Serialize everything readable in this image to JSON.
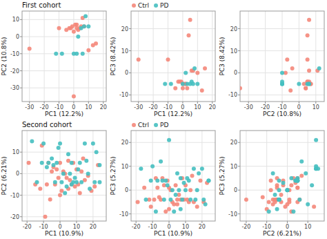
{
  "chart_data": [
    {
      "type": "scatter",
      "title": "First cohort",
      "xlabel": "PC1 (12.2%)",
      "ylabel": "PC2 (10.8%)",
      "xlim": [
        -35,
        22
      ],
      "ylim": [
        -38,
        15
      ],
      "xticks": [
        -30,
        -20,
        -10,
        0,
        10,
        20
      ],
      "yticks": [
        -30,
        -20,
        -10,
        0,
        10
      ],
      "grid": true,
      "series": [
        {
          "color": "#F4877A",
          "x": [
            -30,
            -10,
            -5,
            -3,
            -1,
            0,
            0,
            1,
            2,
            3,
            4,
            5,
            6,
            10,
            13,
            15,
            -2,
            2,
            7
          ],
          "values": [
            -7,
            5,
            4,
            5,
            6,
            3,
            -35,
            7,
            7,
            4,
            5,
            6,
            11,
            -8,
            -5,
            -4,
            5,
            5,
            6
          ]
        },
        {
          "color": "#45BFC0",
          "x": [
            -12,
            -8,
            0,
            2,
            5,
            7,
            8,
            10,
            3,
            6
          ],
          "values": [
            -10,
            -10,
            -10,
            -10,
            5,
            6,
            12,
            6,
            0,
            -10
          ]
        }
      ]
    },
    {
      "type": "scatter",
      "xlabel": "PC1 (12.2%)",
      "ylabel": "PC3 (8.42%)",
      "xlim": [
        -35,
        22
      ],
      "ylim": [
        -13,
        28
      ],
      "xticks": [
        -30,
        -20,
        -10,
        0,
        10,
        20
      ],
      "yticks": [
        -10,
        0,
        10,
        20
      ],
      "grid": true,
      "legend": "top left",
      "series": [
        {
          "name": "Ctrl",
          "color": "#F4877A",
          "x": [
            -30,
            -10,
            -5,
            -3,
            -1,
            0,
            0,
            1,
            2,
            3,
            4,
            5,
            6,
            10,
            13,
            15,
            -2,
            2,
            7
          ],
          "values": [
            6,
            6,
            -7,
            -4,
            -4,
            -5,
            -7,
            -5,
            -5,
            -7,
            17,
            24,
            1,
            0,
            -8,
            2,
            -4,
            -5,
            1
          ]
        },
        {
          "name": "PD",
          "color": "#45BFC0",
          "x": [
            -12,
            -8,
            0,
            2,
            5,
            7,
            8,
            10,
            3,
            6
          ],
          "values": [
            -5,
            -5,
            -5,
            0,
            -5,
            -5,
            2,
            -5,
            -5,
            -4
          ]
        }
      ]
    },
    {
      "type": "scatter",
      "xlabel": "PC2 (10.8%)",
      "ylabel": "PC3 (8.42%)",
      "xlim": [
        -35,
        15
      ],
      "ylim": [
        -13,
        28
      ],
      "xticks": [
        -30,
        -20,
        -10,
        0,
        10
      ],
      "yticks": [
        -10,
        0,
        10,
        20
      ],
      "grid": true,
      "series": [
        {
          "color": "#F4877A",
          "x": [
            -7,
            5,
            4,
            5,
            6,
            3,
            -35,
            7,
            7,
            4,
            5,
            6,
            11,
            -8,
            -5,
            -4,
            5,
            5,
            6
          ],
          "values": [
            6,
            6,
            -7,
            -4,
            -4,
            -5,
            -7,
            -5,
            -5,
            -7,
            17,
            24,
            1,
            0,
            -8,
            2,
            -4,
            -5,
            1
          ]
        },
        {
          "color": "#45BFC0",
          "x": [
            -10,
            -10,
            -10,
            -10,
            5,
            6,
            12,
            6,
            0,
            -10
          ],
          "values": [
            -5,
            -5,
            -5,
            0,
            -5,
            -5,
            2,
            -5,
            -5,
            -4
          ]
        }
      ]
    },
    {
      "type": "scatter",
      "title": "Second cohort",
      "xlabel": "PC1 (10.9%)",
      "ylabel": "PC2 (6.21%)",
      "xlim": [
        -23,
        28
      ],
      "ylim": [
        -22,
        20
      ],
      "xticks": [
        -20,
        -10,
        0,
        10,
        20
      ],
      "yticks": [
        -20,
        -10,
        0,
        10
      ],
      "grid": true,
      "series": [
        {
          "color": "#F4877A",
          "x": [
            -19,
            -15,
            -12,
            -11,
            -9,
            -8,
            -7,
            -5,
            -3,
            -2,
            -1,
            0,
            0,
            1,
            2,
            3,
            5,
            5,
            7,
            8,
            10,
            11,
            13,
            15,
            17,
            19,
            21,
            23,
            -4,
            6,
            9,
            14,
            -6,
            4,
            12
          ],
          "values": [
            5,
            -5,
            -7,
            13,
            -20,
            -5,
            5,
            1,
            -5,
            2,
            -2,
            -10,
            5,
            -8,
            1,
            0,
            6,
            -7,
            -5,
            5,
            2,
            -5,
            1,
            -3,
            -1,
            -8,
            -6,
            4,
            3,
            -3,
            -6,
            7,
            -12,
            -2,
            -9
          ]
        },
        {
          "color": "#45BFC0",
          "x": [
            -17,
            -14,
            -10,
            -7,
            -4,
            -3,
            0,
            2,
            5,
            7,
            10,
            12,
            15,
            17,
            21,
            24,
            -2,
            3,
            8,
            -11,
            1,
            6,
            13,
            20,
            24,
            -5,
            9,
            16,
            -8,
            4,
            11,
            18,
            22,
            -1,
            7
          ],
          "values": [
            15,
            -4,
            14,
            5,
            4,
            -4,
            14,
            0,
            9,
            5,
            -4,
            5,
            14,
            0,
            -4,
            -4,
            5,
            -9,
            -4,
            5,
            -4,
            0,
            -4,
            14,
            4,
            7,
            -2,
            6,
            3,
            -6,
            2,
            -7,
            10,
            12,
            -5
          ]
        }
      ]
    },
    {
      "type": "scatter",
      "xlabel": "PC1 (10.9%)",
      "ylabel": "PC3 (5.27%)",
      "xlim": [
        -23,
        28
      ],
      "ylim": [
        -13,
        25
      ],
      "xticks": [
        -20,
        -10,
        0,
        10,
        20
      ],
      "yticks": [
        -10,
        0,
        10,
        20
      ],
      "grid": true,
      "legend": "top left",
      "series": [
        {
          "name": "Ctrl",
          "color": "#F4877A",
          "x": [
            -19,
            -15,
            -12,
            -11,
            -9,
            -8,
            -7,
            -5,
            -3,
            -2,
            -1,
            0,
            0,
            1,
            2,
            3,
            5,
            5,
            7,
            8,
            10,
            11,
            13,
            15,
            17,
            19,
            21,
            23,
            -4,
            6,
            9,
            14,
            -6,
            4,
            12
          ],
          "values": [
            -5,
            1,
            -4,
            -7,
            -4,
            5,
            1,
            -4,
            2,
            -9,
            4,
            -8,
            1,
            0,
            -5,
            -6,
            -4,
            -6,
            -4,
            5,
            2,
            -4,
            0,
            -5,
            -7,
            4,
            -5,
            3,
            5,
            -2,
            -4,
            6,
            -3,
            2,
            -5
          ]
        },
        {
          "name": "PD",
          "color": "#45BFC0",
          "x": [
            -17,
            -14,
            -10,
            -7,
            -4,
            -3,
            0,
            2,
            5,
            7,
            10,
            12,
            15,
            17,
            21,
            24,
            -2,
            3,
            8,
            -11,
            1,
            6,
            13,
            20,
            24,
            -5,
            9,
            16,
            -8,
            4,
            11,
            18,
            22,
            -1,
            7
          ],
          "values": [
            9,
            -4,
            10,
            4,
            4,
            -4,
            21,
            0,
            7,
            5,
            0,
            4,
            9,
            0,
            -4,
            4,
            4,
            -9,
            -4,
            4,
            -4,
            0,
            -4,
            9,
            4,
            12,
            3,
            -4,
            -9,
            -2,
            5,
            7,
            -6,
            2,
            -8
          ]
        }
      ]
    },
    {
      "type": "scatter",
      "xlabel": "PC2 (6.21%)",
      "ylabel": "PC3 (5.27%)",
      "xlim": [
        -23,
        18
      ],
      "ylim": [
        -13,
        25
      ],
      "xticks": [
        -20,
        -10,
        0,
        10
      ],
      "yticks": [
        -10,
        0,
        10,
        20
      ],
      "grid": true,
      "series": [
        {
          "color": "#F4877A",
          "x": [
            5,
            -5,
            -7,
            13,
            -20,
            -5,
            5,
            1,
            -5,
            2,
            -2,
            -10,
            5,
            -8,
            1,
            0,
            6,
            -7,
            -5,
            5,
            2,
            -5,
            1,
            -3,
            -1,
            -8,
            -6,
            4,
            3,
            -3,
            -6,
            7,
            -12,
            -2,
            -9
          ],
          "values": [
            -5,
            1,
            -4,
            -7,
            -4,
            5,
            1,
            -4,
            2,
            -9,
            4,
            -8,
            1,
            0,
            -5,
            -6,
            -4,
            -6,
            -4,
            5,
            2,
            -4,
            0,
            -5,
            -7,
            4,
            -5,
            3,
            5,
            -2,
            -4,
            6,
            -3,
            2,
            -5
          ]
        },
        {
          "color": "#45BFC0",
          "x": [
            15,
            -4,
            14,
            5,
            4,
            -4,
            14,
            0,
            9,
            5,
            -4,
            5,
            14,
            0,
            -4,
            -4,
            5,
            -9,
            -4,
            5,
            -4,
            0,
            -4,
            14,
            4,
            7,
            -2,
            6,
            3,
            -6,
            2,
            -7,
            10,
            12,
            -5
          ],
          "values": [
            9,
            -4,
            10,
            4,
            4,
            -4,
            21,
            0,
            7,
            5,
            0,
            4,
            9,
            0,
            -4,
            4,
            4,
            -9,
            -4,
            4,
            -4,
            0,
            -4,
            9,
            4,
            12,
            3,
            -4,
            -9,
            -2,
            5,
            7,
            -6,
            2,
            -8
          ]
        }
      ]
    }
  ]
}
